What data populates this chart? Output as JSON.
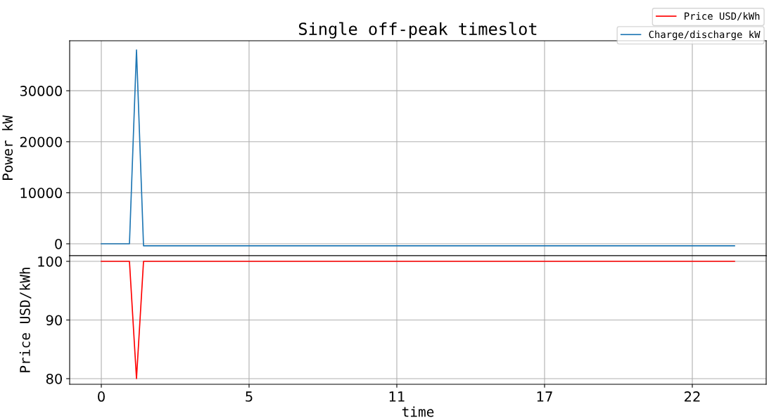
{
  "chart_data": [
    {
      "type": "line",
      "title": "Single off-peak timeslot",
      "ylabel": "Power kW",
      "categories": [
        "0",
        null,
        null,
        null,
        null,
        null,
        null,
        null,
        null,
        null,
        null,
        null,
        null,
        null,
        null,
        null,
        null,
        null,
        null,
        null,
        null,
        "5",
        null,
        null,
        null,
        null,
        null,
        null,
        null,
        null,
        null,
        null,
        null,
        null,
        null,
        null,
        null,
        null,
        null,
        null,
        null,
        null,
        "11",
        null,
        null,
        null,
        null,
        null,
        null,
        null,
        null,
        null,
        null,
        null,
        null,
        null,
        null,
        null,
        null,
        null,
        null,
        null,
        null,
        "17",
        null,
        null,
        null,
        null,
        null,
        null,
        null,
        null,
        null,
        null,
        null,
        null,
        null,
        null,
        null,
        null,
        null,
        null,
        null,
        null,
        "22",
        null,
        null,
        null,
        null,
        null,
        null
      ],
      "ylim": [
        -2340,
        39800
      ],
      "yticks": [
        0,
        10000,
        20000,
        30000
      ],
      "tick_labels": "y",
      "grid": true,
      "legend": "top right",
      "series": [
        {
          "name": "Charge/discharge kW",
          "color": "#1f77b4",
          "values": [
            0,
            0,
            0,
            0,
            0,
            38000,
            -400,
            -400,
            -400,
            -400,
            -400,
            -400,
            -400,
            -400,
            -400,
            -400,
            -400,
            -400,
            -400,
            -400,
            -400,
            -400,
            -400,
            -400,
            -400,
            -400,
            -400,
            -400,
            -400,
            -400,
            -400,
            -400,
            -400,
            -400,
            -400,
            -400,
            -400,
            -400,
            -400,
            -400,
            -400,
            -400,
            -400,
            -400,
            -400,
            -400,
            -400,
            -400,
            -400,
            -400,
            -400,
            -400,
            -400,
            -400,
            -400,
            -400,
            -400,
            -400,
            -400,
            -400,
            -400,
            -400,
            -400,
            -400,
            -400,
            -400,
            -400,
            -400,
            -400,
            -400,
            -400,
            -400,
            -400,
            -400,
            -400,
            -400,
            -400,
            -400,
            -400,
            -400,
            -400,
            -400,
            -400,
            -400,
            -400,
            -400,
            -400,
            -400,
            -400,
            -400,
            -400
          ]
        }
      ]
    },
    {
      "type": "line",
      "xlabel": "time",
      "ylabel": "Price USD/kWh",
      "categories": [
        "0",
        null,
        null,
        null,
        null,
        null,
        null,
        null,
        null,
        null,
        null,
        null,
        null,
        null,
        null,
        null,
        null,
        null,
        null,
        null,
        null,
        "5",
        null,
        null,
        null,
        null,
        null,
        null,
        null,
        null,
        null,
        null,
        null,
        null,
        null,
        null,
        null,
        null,
        null,
        null,
        null,
        null,
        "11",
        null,
        null,
        null,
        null,
        null,
        null,
        null,
        null,
        null,
        null,
        null,
        null,
        null,
        null,
        null,
        null,
        null,
        null,
        null,
        null,
        "17",
        null,
        null,
        null,
        null,
        null,
        null,
        null,
        null,
        null,
        null,
        null,
        null,
        null,
        null,
        null,
        null,
        null,
        null,
        null,
        null,
        "22",
        null,
        null,
        null,
        null,
        null,
        null
      ],
      "ylim": [
        79.04,
        100.96
      ],
      "yticks": [
        80,
        90,
        100
      ],
      "grid": true,
      "legend": "top right",
      "series": [
        {
          "name": "Price USD/kWh",
          "color": "#ff0000",
          "values": [
            100,
            100,
            100,
            100,
            100,
            80,
            100,
            100,
            100,
            100,
            100,
            100,
            100,
            100,
            100,
            100,
            100,
            100,
            100,
            100,
            100,
            100,
            100,
            100,
            100,
            100,
            100,
            100,
            100,
            100,
            100,
            100,
            100,
            100,
            100,
            100,
            100,
            100,
            100,
            100,
            100,
            100,
            100,
            100,
            100,
            100,
            100,
            100,
            100,
            100,
            100,
            100,
            100,
            100,
            100,
            100,
            100,
            100,
            100,
            100,
            100,
            100,
            100,
            100,
            100,
            100,
            100,
            100,
            100,
            100,
            100,
            100,
            100,
            100,
            100,
            100,
            100,
            100,
            100,
            100,
            100,
            100,
            100,
            100,
            100,
            100,
            100,
            100,
            100,
            100,
            100
          ]
        }
      ]
    }
  ]
}
